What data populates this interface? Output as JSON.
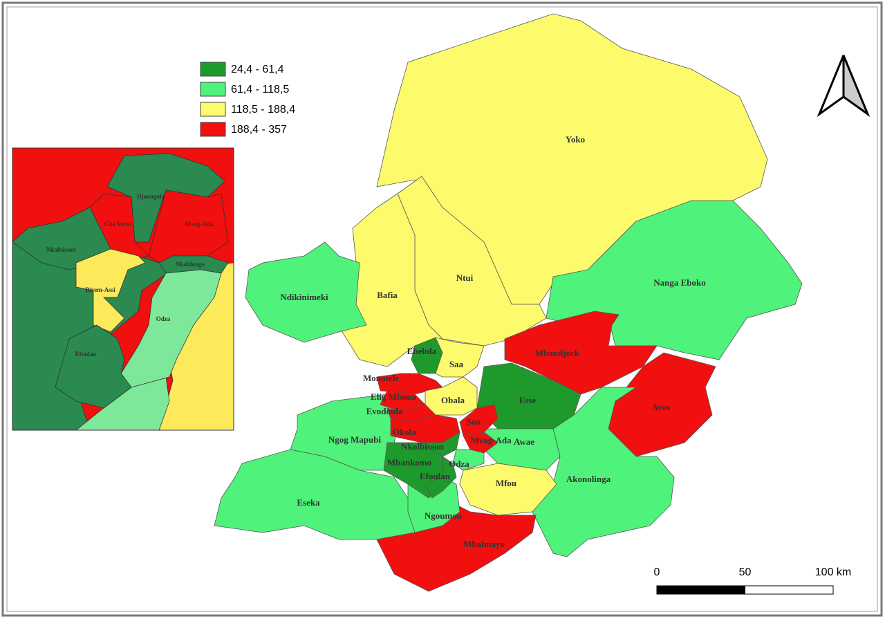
{
  "legend": [
    {
      "label": "24,4 - 61,4",
      "color": "#1e9a2c"
    },
    {
      "label": "61,4 - 118,5",
      "color": "#4ff27a"
    },
    {
      "label": "118,5 - 188,4",
      "color": "#fdfb6c"
    },
    {
      "label": "188,4 - 357",
      "color": "#f10f0f"
    }
  ],
  "map": {
    "regions": [
      {
        "name": "Yoko",
        "color": "#fdfb6c"
      },
      {
        "name": "Ntui",
        "color": "#fdfb6c"
      },
      {
        "name": "Bafia",
        "color": "#fdfb6c"
      },
      {
        "name": "Nanga Eboko",
        "color": "#4ff27a"
      },
      {
        "name": "Ndikinimeki",
        "color": "#4ff27a"
      },
      {
        "name": "Mbandjock",
        "color": "#f10f0f"
      },
      {
        "name": "Ayos",
        "color": "#f10f0f"
      },
      {
        "name": "Akonolinga",
        "color": "#4ff27a"
      },
      {
        "name": "Esse",
        "color": "#1e9a2c"
      },
      {
        "name": "Awae",
        "color": "#4ff27a"
      },
      {
        "name": "Mfou",
        "color": "#fdfb6c"
      },
      {
        "name": "Eseka",
        "color": "#4ff27a"
      },
      {
        "name": "Mbalmayo",
        "color": "#f10f0f"
      },
      {
        "name": "Ngoumou",
        "color": "#4ff27a"
      },
      {
        "name": "Ngog Mapubi",
        "color": "#4ff27a"
      },
      {
        "name": "Mbankomo",
        "color": "#1e9a2c"
      },
      {
        "name": "Ebebda",
        "color": "#1e9a2c"
      },
      {
        "name": "Saa",
        "color": "#fdfb6c"
      },
      {
        "name": "Monatele",
        "color": "#f10f0f"
      },
      {
        "name": "Elig Mfomo",
        "color": "#f10f0f"
      },
      {
        "name": "Obala",
        "color": "#fdfb6c"
      },
      {
        "name": "Evodoula",
        "color": "#f10f0f"
      },
      {
        "name": "Okola",
        "color": "#f10f0f"
      },
      {
        "name": "Soa",
        "color": "#f10f0f"
      },
      {
        "name": "Nkolbisson",
        "color": "#1e9a2c"
      },
      {
        "name": "Mvog-Ada",
        "color": "#f10f0f"
      },
      {
        "name": "Odza",
        "color": "#4ff27a"
      },
      {
        "name": "Efoulan",
        "color": "#1e9a2c"
      }
    ]
  },
  "inset": {
    "regions": [
      {
        "name": "Djoungolo",
        "color": "#2a8a50"
      },
      {
        "name": "Cite Verte",
        "color": "#f10f0f"
      },
      {
        "name": "Mvog-Ada",
        "color": "#f10f0f"
      },
      {
        "name": "Nkolbisson",
        "color": "#2a8a50"
      },
      {
        "name": "Nkoldongo",
        "color": "#2a8a50"
      },
      {
        "name": "Biyem-Assi",
        "color": "#fdea5a"
      },
      {
        "name": "Odza",
        "color": "#7ee89a"
      },
      {
        "name": "Efoulan",
        "color": "#2a8a50"
      }
    ]
  },
  "scale_bar": {
    "ticks": [
      {
        "value": 0,
        "label": "0"
      },
      {
        "value": 50,
        "label": "50"
      },
      {
        "value": 100,
        "label": "100 km"
      }
    ]
  }
}
